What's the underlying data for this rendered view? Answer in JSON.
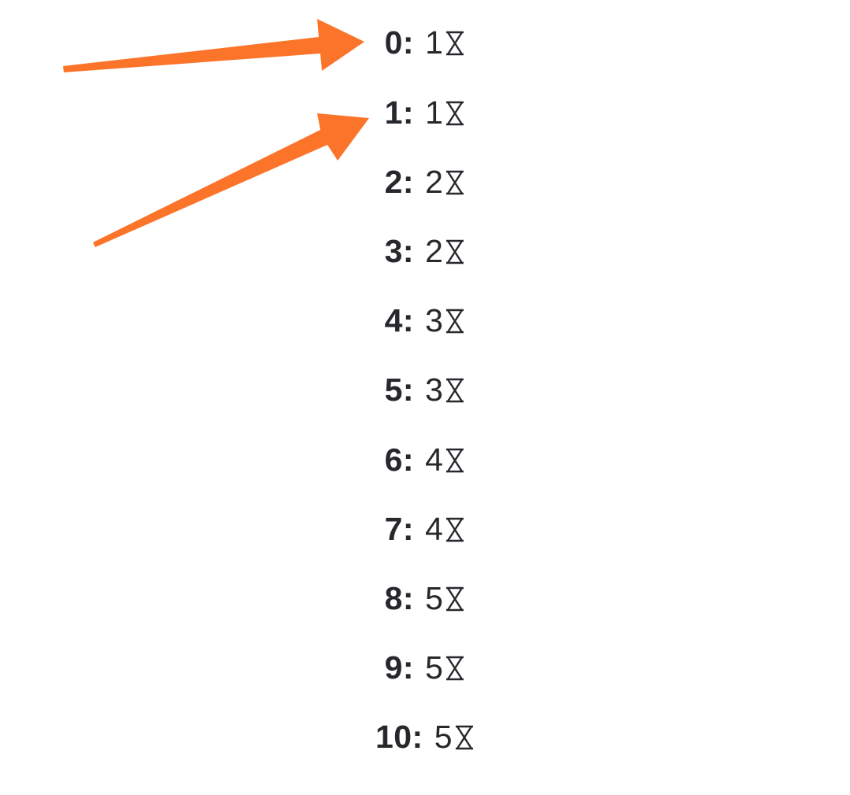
{
  "colors": {
    "text": "#26282c",
    "arrow": "#fb7429",
    "background": "#ffffff"
  },
  "icon": "hourglass-icon",
  "rows": [
    {
      "key": "0:",
      "value": "1"
    },
    {
      "key": "1:",
      "value": "1"
    },
    {
      "key": "2:",
      "value": "2"
    },
    {
      "key": "3:",
      "value": "2"
    },
    {
      "key": "4:",
      "value": "3"
    },
    {
      "key": "5:",
      "value": "3"
    },
    {
      "key": "6:",
      "value": "4"
    },
    {
      "key": "7:",
      "value": "4"
    },
    {
      "key": "8:",
      "value": "5"
    },
    {
      "key": "9:",
      "value": "5"
    },
    {
      "key": "10:",
      "value": "5"
    }
  ]
}
